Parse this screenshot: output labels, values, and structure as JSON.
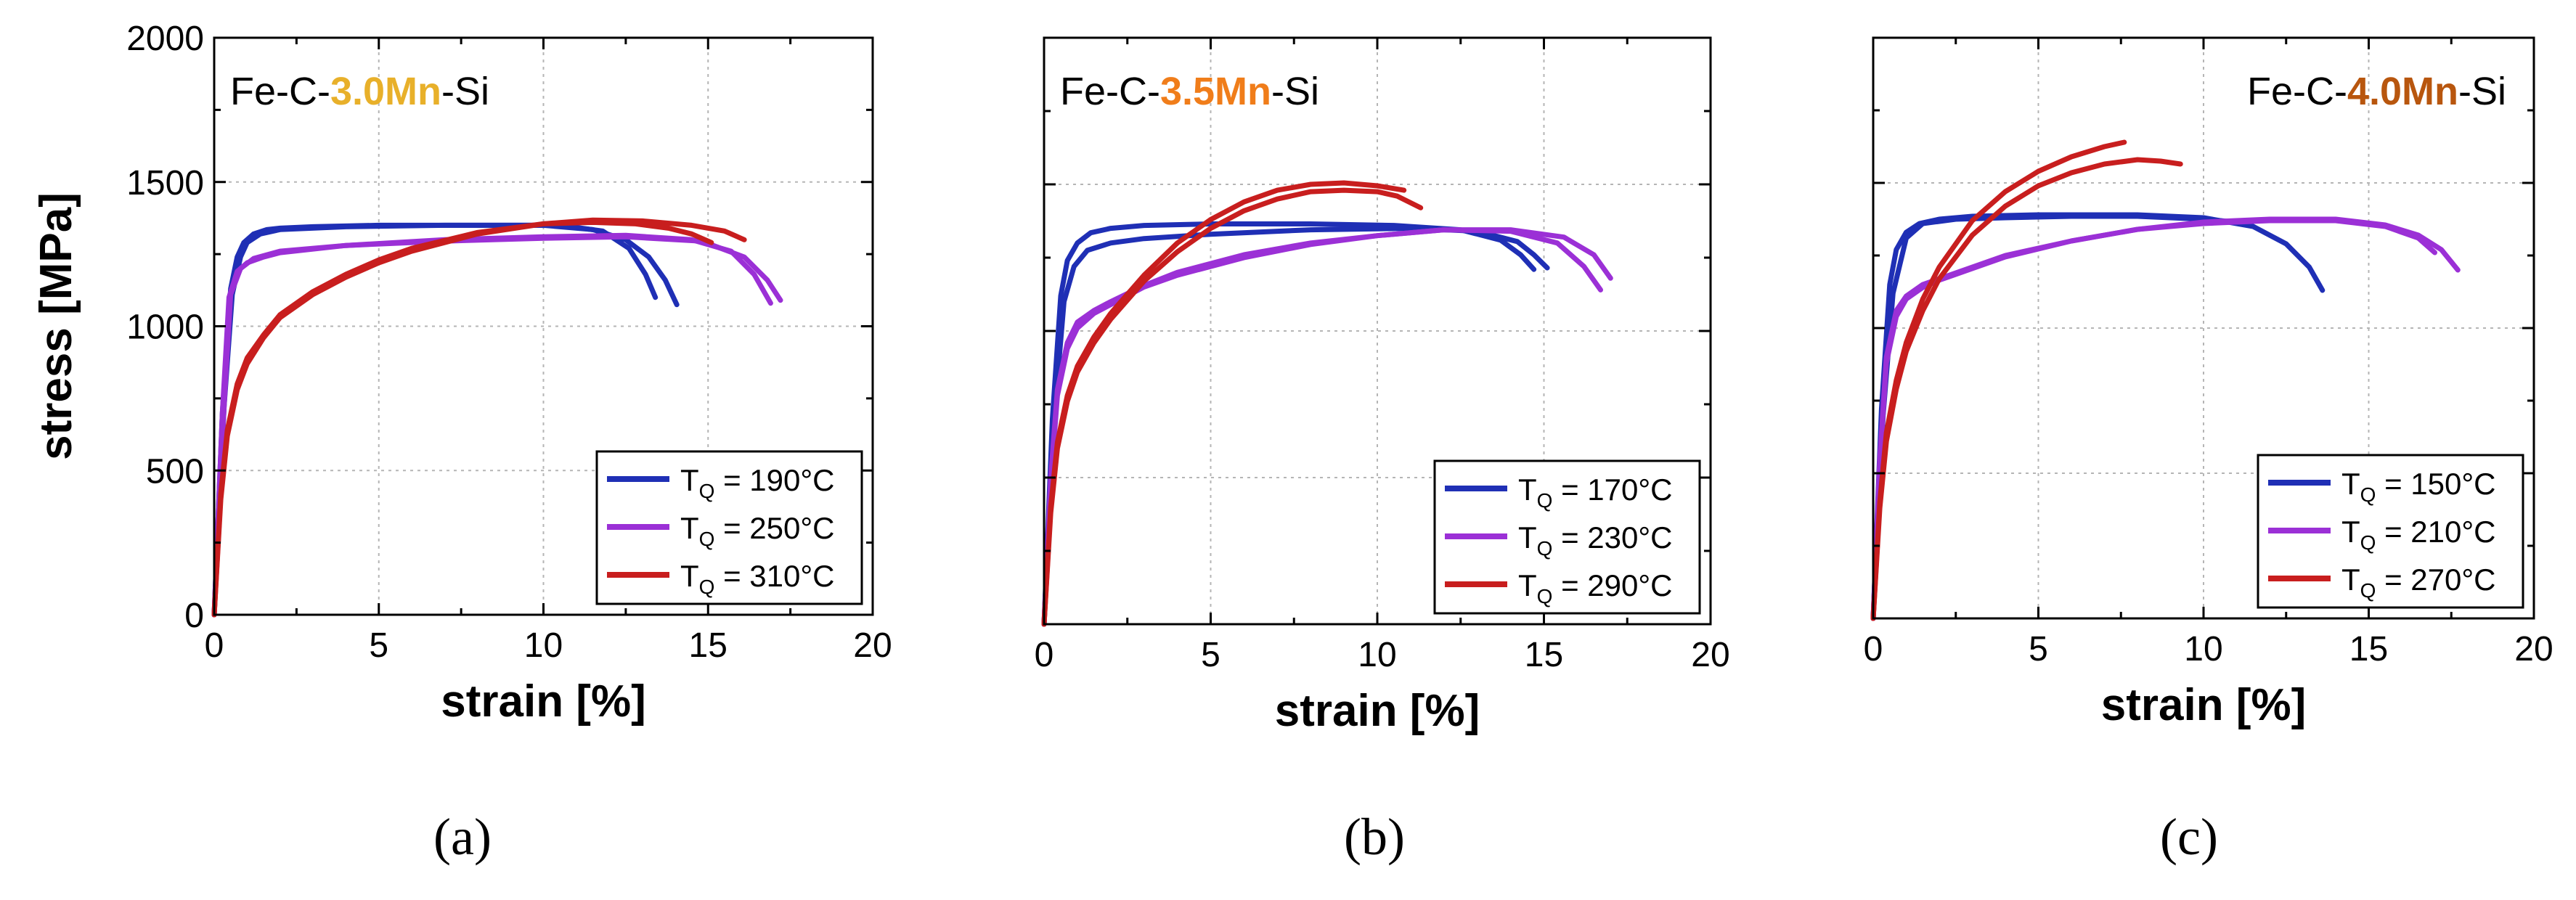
{
  "figure": {
    "panel_captions": [
      "(a)",
      "(b)",
      "(c)"
    ]
  },
  "chart_data": [
    {
      "type": "line",
      "title_parts": [
        "Fe-C-",
        "3.0Mn",
        "-Si"
      ],
      "title_highlight_color": "#e8b02a",
      "xlabel": "strain [%]",
      "ylabel": "stress [MPa]",
      "xlim": [
        0,
        20
      ],
      "ylim": [
        0,
        2000
      ],
      "xticks": [
        0,
        5,
        10,
        15,
        20
      ],
      "yticks": [
        0,
        500,
        1000,
        1500,
        2000
      ],
      "grid": true,
      "legend_position": "bottom-right",
      "series": [
        {
          "legend": "T_Q = 190°C",
          "legend_subscript": "Q",
          "legend_value": " = 190°C",
          "color": "#1f2fb5",
          "curves": [
            {
              "x": [
                0,
                0.25,
                0.5,
                0.7,
                0.9,
                1.2,
                1.6,
                2,
                3,
                5,
                8,
                10.5,
                11.8,
                12.6,
                13.1,
                13.4
              ],
              "y": [
                0,
                700,
                1130,
                1240,
                1290,
                1320,
                1335,
                1340,
                1345,
                1350,
                1350,
                1350,
                1330,
                1270,
                1180,
                1100
              ]
            },
            {
              "x": [
                0,
                0.3,
                0.55,
                0.8,
                1,
                1.4,
                2,
                4,
                7,
                10,
                11.5,
                12.5,
                13.2,
                13.7,
                14.05
              ],
              "y": [
                0,
                720,
                1110,
                1240,
                1290,
                1320,
                1335,
                1345,
                1350,
                1350,
                1335,
                1300,
                1240,
                1160,
                1075
              ]
            }
          ]
        },
        {
          "legend": "T_Q = 250°C",
          "legend_subscript": "Q",
          "legend_value": " = 250°C",
          "color": "#9b30d6",
          "curves": [
            {
              "x": [
                0,
                0.25,
                0.45,
                0.7,
                1,
                1.5,
                2,
                4,
                7,
                10,
                12.5,
                14.5,
                15.7,
                16.4,
                16.9
              ],
              "y": [
                0,
                700,
                1100,
                1190,
                1220,
                1240,
                1255,
                1280,
                1300,
                1310,
                1315,
                1300,
                1260,
                1180,
                1080
              ]
            },
            {
              "x": [
                0,
                0.3,
                0.5,
                0.8,
                1.2,
                2,
                4,
                7,
                10,
                12.5,
                14.8,
                16.1,
                16.8,
                17.2
              ],
              "y": [
                0,
                720,
                1110,
                1200,
                1235,
                1260,
                1280,
                1295,
                1305,
                1310,
                1295,
                1240,
                1160,
                1090
              ]
            }
          ]
        },
        {
          "legend": "T_Q = 310°C",
          "legend_subscript": "Q",
          "legend_value": " = 310°C",
          "color": "#c81e1e",
          "curves": [
            {
              "x": [
                0,
                0.2,
                0.4,
                0.7,
                1,
                1.5,
                2,
                3,
                4,
                5,
                6,
                8,
                10,
                11.5,
                13,
                14.5,
                15.5,
                16.1
              ],
              "y": [
                0,
                400,
                620,
                780,
                870,
                960,
                1030,
                1110,
                1170,
                1220,
                1260,
                1320,
                1355,
                1368,
                1365,
                1350,
                1330,
                1300
              ]
            },
            {
              "x": [
                0,
                0.2,
                0.4,
                0.7,
                1,
                1.5,
                2,
                3,
                4,
                5,
                6,
                8,
                10,
                11.5,
                12.8,
                13.8,
                14.5,
                15.1
              ],
              "y": [
                0,
                420,
                640,
                800,
                890,
                970,
                1040,
                1120,
                1180,
                1230,
                1270,
                1325,
                1355,
                1360,
                1355,
                1340,
                1320,
                1290
              ]
            }
          ]
        }
      ]
    },
    {
      "type": "line",
      "title_parts": [
        "Fe-C-",
        "3.5Mn",
        "-Si"
      ],
      "title_highlight_color": "#f07d1a",
      "xlabel": "strain [%]",
      "ylabel": "",
      "xlim": [
        0,
        20
      ],
      "ylim": [
        0,
        2000
      ],
      "xticks": [
        0,
        5,
        10,
        15,
        20
      ],
      "yticks": [
        0,
        500,
        1000,
        1500,
        2000
      ],
      "grid": true,
      "legend_position": "bottom-right",
      "series": [
        {
          "legend": "T_Q = 170°C",
          "legend_subscript": "Q",
          "legend_value": " = 170°C",
          "color": "#1f2fb5",
          "curves": [
            {
              "x": [
                0,
                0.25,
                0.5,
                0.7,
                1,
                1.4,
                2,
                3,
                5,
                8,
                10.5,
                12.5,
                13.7,
                14.3,
                14.7
              ],
              "y": [
                0,
                700,
                1120,
                1240,
                1300,
                1335,
                1350,
                1360,
                1365,
                1365,
                1360,
                1345,
                1310,
                1260,
                1210
              ]
            },
            {
              "x": [
                0,
                0.3,
                0.6,
                0.9,
                1.3,
                2,
                3,
                5,
                8,
                11,
                13,
                14.2,
                14.7,
                15.1
              ],
              "y": [
                0,
                700,
                1100,
                1220,
                1275,
                1300,
                1315,
                1330,
                1345,
                1350,
                1340,
                1305,
                1260,
                1215
              ]
            }
          ]
        },
        {
          "legend": "T_Q = 230°C",
          "legend_subscript": "Q",
          "legend_value": " = 230°C",
          "color": "#9b30d6",
          "curves": [
            {
              "x": [
                0,
                0.2,
                0.4,
                0.7,
                1,
                1.5,
                2,
                3,
                4,
                6,
                8,
                10,
                12,
                14,
                15.4,
                16.2,
                16.7
              ],
              "y": [
                0,
                500,
                800,
                960,
                1030,
                1070,
                1100,
                1155,
                1200,
                1260,
                1300,
                1325,
                1345,
                1340,
                1300,
                1220,
                1140
              ]
            },
            {
              "x": [
                0,
                0.2,
                0.4,
                0.7,
                1,
                1.5,
                2,
                3,
                4,
                6,
                8,
                10,
                12,
                14,
                15.6,
                16.5,
                17.0
              ],
              "y": [
                0,
                480,
                780,
                940,
                1010,
                1060,
                1090,
                1150,
                1190,
                1250,
                1295,
                1325,
                1345,
                1345,
                1320,
                1260,
                1180
              ]
            }
          ]
        },
        {
          "legend": "T_Q = 290°C",
          "legend_subscript": "Q",
          "legend_value": " = 290°C",
          "color": "#c81e1e",
          "curves": [
            {
              "x": [
                0,
                0.2,
                0.4,
                0.7,
                1,
                1.5,
                2,
                3,
                4,
                5,
                6,
                7,
                8,
                9,
                10,
                10.6,
                11.3
              ],
              "y": [
                0,
                380,
                600,
                760,
                860,
                960,
                1040,
                1170,
                1270,
                1350,
                1410,
                1450,
                1475,
                1480,
                1475,
                1460,
                1420
              ]
            },
            {
              "x": [
                0,
                0.2,
                0.4,
                0.7,
                1,
                1.5,
                2,
                3,
                4,
                5,
                6,
                7,
                8,
                9,
                10,
                10.8
              ],
              "y": [
                0,
                400,
                620,
                780,
                880,
                980,
                1060,
                1190,
                1300,
                1380,
                1440,
                1480,
                1500,
                1505,
                1495,
                1480
              ]
            }
          ]
        }
      ]
    },
    {
      "type": "line",
      "title_parts": [
        "Fe-C-",
        "4.0Mn",
        "-Si"
      ],
      "title_highlight_color": "#b8560e",
      "xlabel": "strain [%]",
      "ylabel": "",
      "xlim": [
        0,
        20
      ],
      "ylim": [
        0,
        2000
      ],
      "xticks": [
        0,
        5,
        10,
        15,
        20
      ],
      "yticks": [
        0,
        500,
        1000,
        1500,
        2000
      ],
      "grid": true,
      "legend_position": "bottom-right",
      "series": [
        {
          "legend": "T_Q = 150°C",
          "legend_subscript": "Q",
          "legend_value": " = 150°C",
          "color": "#1f2fb5",
          "curves": [
            {
              "x": [
                0,
                0.25,
                0.5,
                0.7,
                1,
                1.4,
                2,
                3,
                5,
                8,
                10,
                11.5,
                12.5,
                13.2,
                13.6
              ],
              "y": [
                0,
                720,
                1150,
                1270,
                1330,
                1360,
                1375,
                1385,
                1390,
                1390,
                1380,
                1350,
                1290,
                1210,
                1130
              ]
            },
            {
              "x": [
                0,
                0.3,
                0.6,
                1,
                1.5,
                2.5,
                4,
                6,
                8,
                10,
                11
              ],
              "y": [
                0,
                700,
                1120,
                1310,
                1360,
                1375,
                1380,
                1385,
                1385,
                1375,
                1365
              ]
            }
          ]
        },
        {
          "legend": "T_Q = 210°C",
          "legend_subscript": "Q",
          "legend_value": " = 210°C",
          "color": "#9b30d6",
          "curves": [
            {
              "x": [
                0,
                0.2,
                0.4,
                0.7,
                1,
                1.5,
                2,
                3,
                4,
                6,
                8,
                10,
                12,
                14,
                15.5,
                16.5,
                17.2,
                17.7
              ],
              "y": [
                0,
                550,
                900,
                1060,
                1110,
                1150,
                1170,
                1210,
                1250,
                1300,
                1340,
                1365,
                1375,
                1375,
                1355,
                1320,
                1270,
                1200
              ]
            },
            {
              "x": [
                0,
                0.2,
                0.4,
                0.7,
                1,
                1.5,
                2,
                3,
                4,
                6,
                8,
                10,
                12,
                14,
                15.5,
                16.5,
                17.0
              ],
              "y": [
                0,
                530,
                880,
                1040,
                1100,
                1140,
                1165,
                1205,
                1245,
                1300,
                1340,
                1360,
                1370,
                1370,
                1350,
                1310,
                1260
              ]
            }
          ]
        },
        {
          "legend": "T_Q = 270°C",
          "legend_subscript": "Q",
          "legend_value": " = 270°C",
          "color": "#c81e1e",
          "curves": [
            {
              "x": [
                0,
                0.2,
                0.4,
                0.7,
                1,
                1.5,
                2,
                3,
                4,
                5,
                6,
                7,
                7.6
              ],
              "y": [
                0,
                400,
                640,
                820,
                950,
                1100,
                1210,
                1370,
                1470,
                1540,
                1590,
                1625,
                1640
              ]
            },
            {
              "x": [
                0,
                0.2,
                0.4,
                0.7,
                1,
                1.5,
                2,
                3,
                4,
                5,
                6,
                7,
                8,
                8.7,
                9.3
              ],
              "y": [
                0,
                380,
                610,
                790,
                920,
                1060,
                1170,
                1320,
                1420,
                1490,
                1535,
                1565,
                1580,
                1575,
                1565
              ]
            }
          ]
        }
      ]
    }
  ]
}
